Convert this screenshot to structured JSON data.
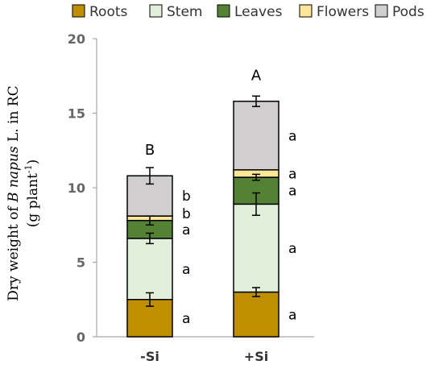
{
  "chart_data": {
    "type": "bar",
    "stacked": true,
    "categories": [
      "-Si",
      "+Si"
    ],
    "ylim": [
      0,
      20
    ],
    "yticks": [
      0,
      5,
      10,
      15,
      20
    ],
    "ylabel": {
      "prefix": "Dry weight of ",
      "species": "B napus",
      "suffix": " L. in RC",
      "unit_line": "(g plant",
      "unit_sup": "-1",
      "unit_close": ")"
    },
    "legend_position": "top",
    "grid": false,
    "series": [
      {
        "name": "Roots",
        "color": "#bf8f00",
        "values": [
          2.5,
          3.0
        ],
        "errors": [
          0.45,
          0.3
        ],
        "letters": [
          "a",
          "a"
        ]
      },
      {
        "name": "Stem",
        "color": "#e2efda",
        "values": [
          4.1,
          5.9
        ],
        "errors": [
          0.35,
          0.75
        ],
        "letters": [
          "a",
          "a"
        ]
      },
      {
        "name": "Leaves",
        "color": "#548235",
        "values": [
          1.2,
          1.8
        ],
        "errors": [
          0.3,
          0.2
        ],
        "letters": [
          "a",
          "a"
        ]
      },
      {
        "name": "Flowers",
        "color": "#ffe699",
        "values": [
          0.3,
          0.5
        ],
        "errors": [
          0.0,
          0.0
        ],
        "letters": [
          "b",
          "a"
        ]
      },
      {
        "name": "Pods",
        "color": "#d0cece",
        "values": [
          2.7,
          4.6
        ],
        "errors": [
          0.55,
          0.35
        ],
        "letters": [
          "b",
          "a"
        ]
      }
    ],
    "top_letters": [
      "B",
      "A"
    ]
  }
}
